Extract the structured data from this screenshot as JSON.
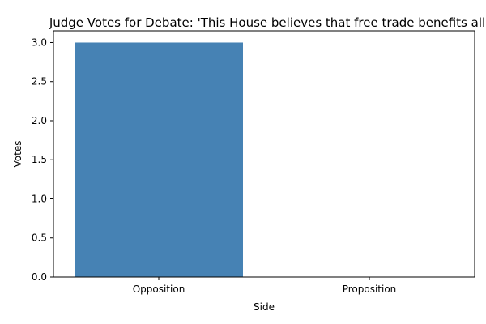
{
  "chart_data": {
    "type": "bar",
    "title": "Judge Votes for Debate: 'This House believes that free trade benefits all",
    "xlabel": "Side",
    "ylabel": "Votes",
    "categories": [
      "Opposition",
      "Proposition"
    ],
    "values": [
      3,
      0
    ],
    "ylim": [
      0,
      3.15
    ],
    "yticks": [
      0.0,
      0.5,
      1.0,
      1.5,
      2.0,
      2.5,
      3.0
    ],
    "ytick_labels": [
      "0.0",
      "0.5",
      "1.0",
      "1.5",
      "2.0",
      "2.5",
      "3.0"
    ],
    "bar_color": "#4682b4",
    "grid": false,
    "legend": "none"
  }
}
